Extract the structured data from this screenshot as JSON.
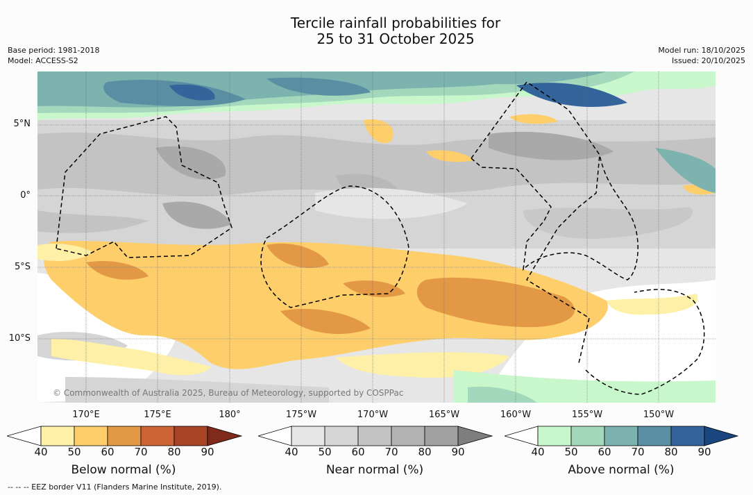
{
  "title": {
    "line1": "Tercile rainfall probabilities for",
    "line2": "25 to 31 October 2025"
  },
  "meta": {
    "base_period": "Base period: 1981-2018",
    "model": "Model: ACCESS-S2",
    "model_run": "Model run: 18/10/2025",
    "issued": "Issued: 20/10/2025"
  },
  "map": {
    "lat_labels": [
      "5°N",
      "0°",
      "5°S",
      "10°S"
    ],
    "lon_labels": [
      "170°E",
      "175°E",
      "180°",
      "175°W",
      "170°W",
      "165°W",
      "160°W",
      "155°W",
      "150°W"
    ],
    "credit": "© Commonwealth of Australia 2025, Bureau of Meteorology, supported by COSPPac",
    "eez_note": "--  --  -- EEZ border V11 (Flanders Marine Institute, 2019)."
  },
  "colorbars": [
    {
      "name": "below-normal",
      "title": "Below normal (%)",
      "ticks": [
        "40",
        "50",
        "60",
        "70",
        "80",
        "90"
      ],
      "colors": [
        "#fef0a6",
        "#fdce6a",
        "#e39846",
        "#cd6435",
        "#a84326",
        "#7f2a1b"
      ]
    },
    {
      "name": "near-normal",
      "title": "Near normal (%)",
      "ticks": [
        "40",
        "50",
        "60",
        "70",
        "80",
        "90"
      ],
      "colors": [
        "#e6e6e6",
        "#d5d5d5",
        "#c3c3c3",
        "#b2b2b2",
        "#a1a1a1",
        "#7e7e7e"
      ]
    },
    {
      "name": "above-normal",
      "title": "Above normal (%)",
      "ticks": [
        "40",
        "50",
        "60",
        "70",
        "80",
        "90"
      ],
      "colors": [
        "#c9f7cc",
        "#a3d8bc",
        "#7db3ae",
        "#5a8fa3",
        "#33649a",
        "#1a4680"
      ]
    }
  ]
}
